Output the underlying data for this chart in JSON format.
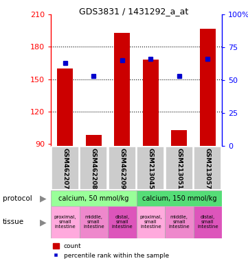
{
  "title": "GDS3831 / 1431292_a_at",
  "samples": [
    "GSM462207",
    "GSM462208",
    "GSM462209",
    "GSM213045",
    "GSM213051",
    "GSM213057"
  ],
  "counts": [
    160,
    98,
    193,
    168,
    103,
    197
  ],
  "percentile_ranks": [
    63,
    53,
    65,
    66,
    53,
    66
  ],
  "y_min": 88,
  "y_max": 210,
  "y_ticks": [
    90,
    120,
    150,
    180,
    210
  ],
  "y2_ticks": [
    0,
    25,
    50,
    75,
    100
  ],
  "bar_color": "#cc0000",
  "marker_color": "#0000cc",
  "bar_width": 0.55,
  "protocol_color1": "#99ff99",
  "protocol_color2": "#55dd77",
  "tissue_color": "#ff66cc",
  "sample_box_color": "#cccccc",
  "bg_color": "#ffffff",
  "tissue_labels": [
    "proximal,\nsmall\nintestine",
    "middle,\nsmall\nintestine",
    "distal,\nsmall\nintestine",
    "proximal,\nsmall\nintestine",
    "middle,\nsmall\nintestine",
    "distal,\nsmall\nintestine"
  ]
}
